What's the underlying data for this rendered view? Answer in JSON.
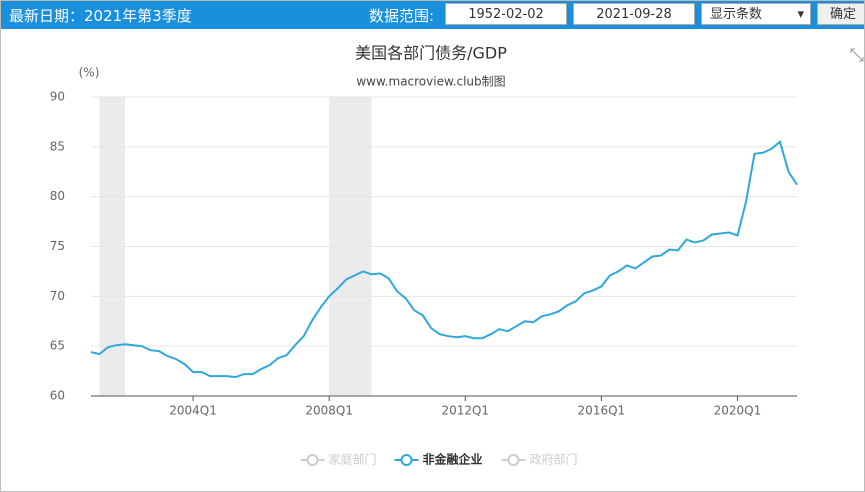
{
  "header": {
    "latest_date": "最新日期：2021年第3季度",
    "range_label": "数据范围:",
    "start": "1952-02-02",
    "end": "2021-09-28",
    "select": "显示条数",
    "button": "确定"
  },
  "chart_data": {
    "type": "line",
    "title": "美国各部门债务/GDP",
    "subtitle": "www.macroview.club制图",
    "y_unit": "(%)",
    "categories": [
      null,
      null,
      null,
      null,
      null,
      null,
      null,
      null,
      null,
      null,
      null,
      null,
      "2004Q1",
      null,
      null,
      null,
      null,
      null,
      null,
      null,
      null,
      null,
      null,
      null,
      null,
      null,
      null,
      null,
      "2008Q1",
      null,
      null,
      null,
      null,
      null,
      null,
      null,
      null,
      null,
      null,
      null,
      null,
      null,
      null,
      null,
      "2012Q1",
      null,
      null,
      null,
      null,
      null,
      null,
      null,
      null,
      null,
      null,
      null,
      null,
      null,
      null,
      null,
      "2016Q1",
      null,
      null,
      null,
      null,
      null,
      null,
      null,
      null,
      null,
      null,
      null,
      null,
      null,
      null,
      null,
      "2020Q1",
      null,
      null,
      null,
      null,
      null,
      null,
      null
    ],
    "series": [
      {
        "name": "家庭部门",
        "color": "#cccccc",
        "visible": false
      },
      {
        "name": "非金融企业",
        "color": "#2ea9d9",
        "visible": true,
        "values": [
          64.4,
          64.2,
          64.9,
          65.1,
          65.2,
          65.1,
          65.0,
          64.6,
          64.5,
          64.0,
          63.7,
          63.2,
          62.4,
          62.4,
          62.0,
          62.0,
          62.0,
          61.9,
          62.2,
          62.2,
          62.7,
          63.1,
          63.8,
          64.1,
          65.1,
          66.0,
          67.6,
          68.9,
          70.0,
          70.8,
          71.7,
          72.1,
          72.5,
          72.2,
          72.3,
          71.8,
          70.5,
          69.8,
          68.6,
          68.1,
          66.8,
          66.2,
          66.0,
          65.9,
          66.0,
          65.8,
          65.8,
          66.2,
          66.7,
          66.5,
          67.0,
          67.5,
          67.4,
          68.0,
          68.2,
          68.5,
          69.1,
          69.5,
          70.3,
          70.6,
          71.0,
          72.1,
          72.5,
          73.1,
          72.8,
          73.4,
          74.0,
          74.1,
          74.7,
          74.6,
          75.7,
          75.4,
          75.6,
          76.2,
          76.3,
          76.4,
          76.1,
          79.5,
          84.3,
          84.4,
          84.8,
          85.5,
          82.5,
          81.2
        ]
      },
      {
        "name": "政府部门",
        "color": "#cccccc",
        "visible": false
      }
    ],
    "shaded_ranges": [
      [
        1,
        4
      ],
      [
        28,
        33
      ]
    ],
    "ylim": [
      60,
      90
    ],
    "yticks": [
      60,
      65,
      70,
      75,
      80,
      85,
      90
    ],
    "grid": true
  }
}
